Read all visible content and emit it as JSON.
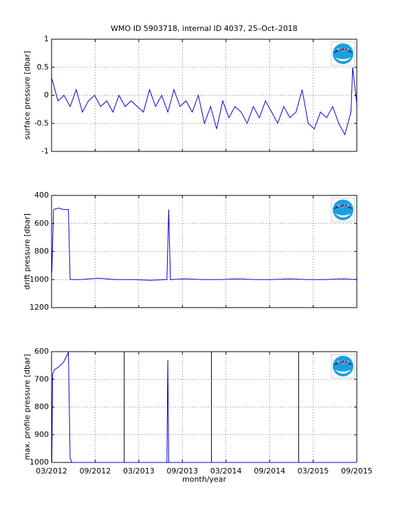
{
  "chart_data": [
    {
      "type": "line",
      "title": "WMO ID 5903718, internal ID 4037, 25–Oct–2018",
      "ylabel": "surface pressure [dbar]",
      "x": [
        2012.17,
        2012.24,
        2012.31,
        2012.38,
        2012.45,
        2012.52,
        2012.59,
        2012.66,
        2012.73,
        2012.8,
        2012.87,
        2012.94,
        2013.01,
        2013.08,
        2013.15,
        2013.22,
        2013.29,
        2013.36,
        2013.43,
        2013.5,
        2013.57,
        2013.64,
        2013.71,
        2013.78,
        2013.85,
        2013.92,
        2013.99,
        2014.06,
        2014.13,
        2014.2,
        2014.27,
        2014.34,
        2014.41,
        2014.48,
        2014.55,
        2014.62,
        2014.69,
        2014.76,
        2014.83,
        2014.9,
        2014.97,
        2015.04,
        2015.11,
        2015.18,
        2015.25,
        2015.32,
        2015.39,
        2015.46,
        2015.53,
        2015.6,
        2015.62,
        2015.67
      ],
      "series": [
        {
          "color": "#0000cc",
          "values": [
            0.3,
            -0.1,
            0.0,
            -0.2,
            0.1,
            -0.3,
            -0.1,
            0.0,
            -0.2,
            -0.1,
            -0.3,
            0.0,
            -0.2,
            -0.1,
            -0.2,
            -0.3,
            0.1,
            -0.2,
            0.0,
            -0.3,
            0.1,
            -0.2,
            -0.1,
            -0.3,
            0.0,
            -0.5,
            -0.2,
            -0.6,
            -0.1,
            -0.4,
            -0.2,
            -0.3,
            -0.5,
            -0.2,
            -0.4,
            -0.1,
            -0.3,
            -0.5,
            -0.2,
            -0.4,
            -0.3,
            0.1,
            -0.5,
            -0.6,
            -0.3,
            -0.4,
            -0.2,
            -0.5,
            -0.7,
            -0.3,
            0.5,
            -0.2
          ]
        }
      ],
      "xlim": [
        2012.167,
        2015.667
      ],
      "xticks": [
        2012.167,
        2012.667,
        2013.167,
        2013.667,
        2014.167,
        2014.667,
        2015.167,
        2015.667
      ],
      "ylim": [
        -1,
        1
      ],
      "yticks": [
        -1,
        -0.5,
        0,
        0.5,
        1
      ],
      "grid": true
    },
    {
      "type": "line",
      "ylabel": "drift pressure [dbar]",
      "x": [
        2012.17,
        2012.19,
        2012.25,
        2012.3,
        2012.36,
        2012.38,
        2012.5,
        2012.7,
        2012.9,
        2013.1,
        2013.3,
        2013.49,
        2013.51,
        2013.53,
        2013.7,
        2013.9,
        2014.1,
        2014.3,
        2014.5,
        2014.7,
        2014.9,
        2015.1,
        2015.3,
        2015.5,
        2015.67
      ],
      "series": [
        {
          "color": "#0000cc",
          "values": [
            950,
            500,
            490,
            500,
            500,
            1000,
            1000,
            990,
            1000,
            1000,
            1005,
            1000,
            500,
            1000,
            995,
            1000,
            1000,
            995,
            1000,
            1000,
            995,
            1000,
            1000,
            995,
            1000
          ]
        }
      ],
      "xlim": [
        2012.167,
        2015.667
      ],
      "xticks": [
        2012.167,
        2012.667,
        2013.167,
        2013.667,
        2014.167,
        2014.667,
        2015.167,
        2015.667
      ],
      "ylim": [
        400,
        1200
      ],
      "y_reversed": true,
      "yticks": [
        400,
        600,
        800,
        1000,
        1200
      ],
      "grid": true
    },
    {
      "type": "line",
      "ylabel": "max. profile pressure [dbar]",
      "xlabel": "month/year",
      "x": [
        2012.17,
        2012.18,
        2012.2,
        2012.25,
        2012.3,
        2012.35,
        2012.36,
        2012.38,
        2012.4,
        2013.49,
        2013.5,
        2013.51,
        2015.67
      ],
      "series": [
        {
          "color": "#0000cc",
          "values": [
            1000,
            680,
            665,
            655,
            640,
            610,
            600,
            985,
            1000,
            1000,
            630,
            1000,
            1000
          ]
        }
      ],
      "vlines": [
        2013,
        2014,
        2015
      ],
      "xlim": [
        2012.167,
        2015.667
      ],
      "xticks": [
        {
          "value": 2012.167,
          "label": "03/2012"
        },
        {
          "value": 2012.667,
          "label": "09/2012"
        },
        {
          "value": 2013.167,
          "label": "03/2013"
        },
        {
          "value": 2013.667,
          "label": "09/2013"
        },
        {
          "value": 2014.167,
          "label": "03/2014"
        },
        {
          "value": 2014.667,
          "label": "09/2014"
        },
        {
          "value": 2015.167,
          "label": "03/2015"
        },
        {
          "value": 2015.667,
          "label": "09/2015"
        }
      ],
      "ylim": [
        600,
        1000
      ],
      "y_reversed": true,
      "yticks": [
        600,
        700,
        800,
        900,
        1000
      ],
      "grid": true
    }
  ],
  "logo": "NOAA"
}
